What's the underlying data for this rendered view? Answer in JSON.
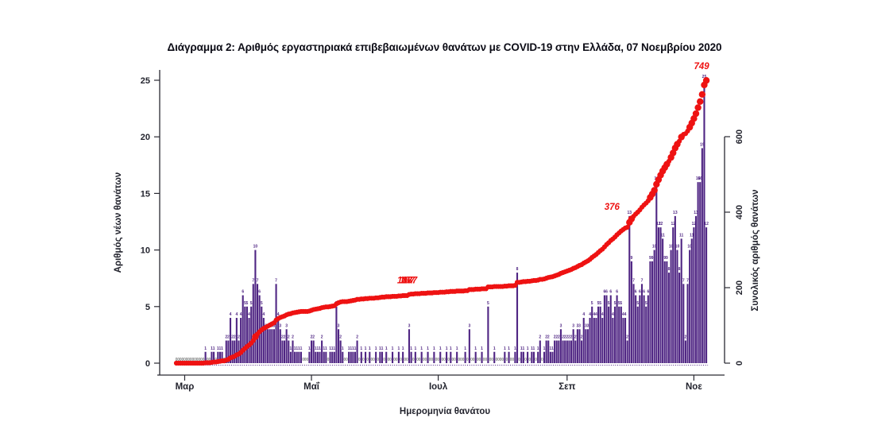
{
  "title": "Διάγραμμα 2: Αριθμός εργαστηριακά επιβεβαιωμένων θανάτων με COVID-19 στην Ελλάδα, 07 Νοεμβρίου 2020",
  "chart_data": {
    "type": "bar",
    "description": "Daily laboratory-confirmed COVID-19 deaths in Greece (purple bars, left axis) with cumulative deaths (red dotted line, right axis), from late February to 07 November 2020",
    "xlabel": "Ημερομηνία θανάτου",
    "ylabel_left": "Αριθμός νέων θανάτων",
    "ylabel_right": "Συνολικός αριθμός θανάτων",
    "ylim_left": [
      0,
      25
    ],
    "yticks_left": [
      0,
      5,
      10,
      15,
      20,
      25
    ],
    "ylim_right": [
      0,
      600
    ],
    "yticks_right": [
      0,
      200,
      400,
      600
    ],
    "x_ticks": [
      {
        "label": "Μαρ",
        "day_index": 4
      },
      {
        "label": "Μαΐ",
        "day_index": 65
      },
      {
        "label": "Ιουλ",
        "day_index": 126
      },
      {
        "label": "Σεπ",
        "day_index": 188
      },
      {
        "label": "Νοε",
        "day_index": 249
      }
    ],
    "daily_deaths": [
      0,
      0,
      0,
      0,
      0,
      0,
      0,
      0,
      0,
      0,
      0,
      0,
      0,
      0,
      1,
      0,
      0,
      1,
      1,
      0,
      1,
      1,
      1,
      0,
      2,
      2,
      4,
      2,
      2,
      4,
      2,
      4,
      6,
      5,
      5,
      4,
      5,
      7,
      10,
      7,
      6,
      5,
      4,
      3,
      3,
      3,
      3,
      3,
      7,
      4,
      3,
      2,
      2,
      3,
      2,
      1,
      2,
      1,
      1,
      1,
      1,
      0,
      0,
      0,
      1,
      2,
      2,
      1,
      1,
      1,
      2,
      1,
      1,
      0,
      1,
      1,
      1,
      5,
      3,
      2,
      1,
      0,
      0,
      1,
      1,
      1,
      1,
      2,
      0,
      1,
      0,
      1,
      0,
      1,
      0,
      0,
      1,
      0,
      1,
      1,
      0,
      1,
      0,
      0,
      1,
      0,
      0,
      1,
      0,
      1,
      0,
      0,
      3,
      1,
      0,
      1,
      0,
      0,
      1,
      0,
      0,
      1,
      0,
      0,
      1,
      0,
      0,
      1,
      0,
      0,
      1,
      0,
      1,
      0,
      0,
      1,
      0,
      0,
      0,
      1,
      0,
      3,
      0,
      0,
      1,
      0,
      0,
      1,
      0,
      0,
      5,
      0,
      0,
      1,
      0,
      0,
      0,
      0,
      1,
      0,
      1,
      0,
      0,
      1,
      8,
      0,
      1,
      1,
      0,
      1,
      0,
      1,
      1,
      0,
      1,
      2,
      0,
      1,
      2,
      2,
      1,
      1,
      2,
      2,
      2,
      3,
      2,
      2,
      2,
      2,
      2,
      3,
      2,
      3,
      3,
      2,
      4,
      3,
      3,
      4,
      5,
      4,
      4,
      5,
      5,
      4,
      6,
      6,
      5,
      6,
      4,
      5,
      6,
      5,
      5,
      4,
      4,
      2,
      13,
      9,
      7,
      6,
      5,
      6,
      7,
      6,
      5,
      6,
      9,
      9,
      10,
      16,
      12,
      12,
      11,
      9,
      9,
      8,
      10,
      12,
      13,
      10,
      8,
      11,
      7,
      2,
      7,
      10,
      11,
      12,
      13,
      16,
      16,
      19,
      25,
      12
    ],
    "cumulative_total": 749,
    "annotations": [
      {
        "label": "187",
        "day_index": 116
      },
      {
        "label": "376",
        "day_index": 218
      },
      {
        "label": "749",
        "day_index": 255
      }
    ],
    "colors": {
      "bars": "#4f2583",
      "bar_labels": "#4f2583",
      "zero_labels": "#808080",
      "cumulative_line": "#ee1212",
      "annotations": "#ee1212",
      "axis_text": "#23242e",
      "title": "#0c0c16"
    },
    "legend": null,
    "grid": false
  }
}
